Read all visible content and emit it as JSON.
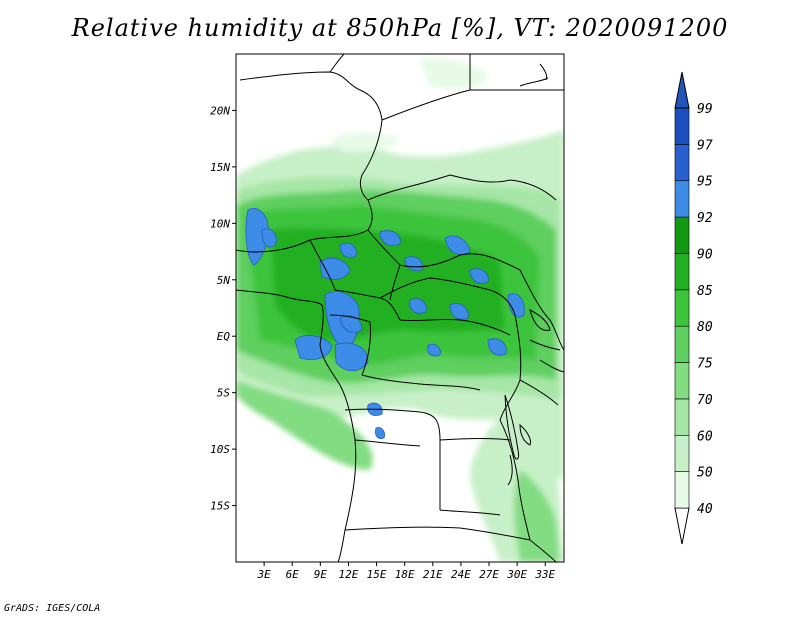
{
  "title": "Relative humidity at 850hPa [%], VT: 2020091200",
  "credit": "GrADS: IGES/COLA",
  "map": {
    "lon_range": [
      0,
      35
    ],
    "lat_range": [
      -20,
      25
    ],
    "lon_ticks": [
      "3E",
      "6E",
      "9E",
      "12E",
      "15E",
      "18E",
      "21E",
      "24E",
      "27E",
      "30E",
      "33E"
    ],
    "lat_ticks": [
      "20N",
      "15N",
      "10N",
      "5N",
      "EQ",
      "5S",
      "10S",
      "15S"
    ]
  },
  "legend": {
    "levels": [
      "40",
      "50",
      "60",
      "70",
      "75",
      "80",
      "85",
      "90",
      "92",
      "95",
      "97",
      "99"
    ],
    "colors": [
      "#ffffff",
      "#e6fae6",
      "#c8f0c8",
      "#a6e6a6",
      "#82dc82",
      "#5fcf5f",
      "#3cc43c",
      "#22b022",
      "#129812",
      "#3d8ce8",
      "#2860d0",
      "#1e4fc0",
      "#2257b8"
    ]
  }
}
